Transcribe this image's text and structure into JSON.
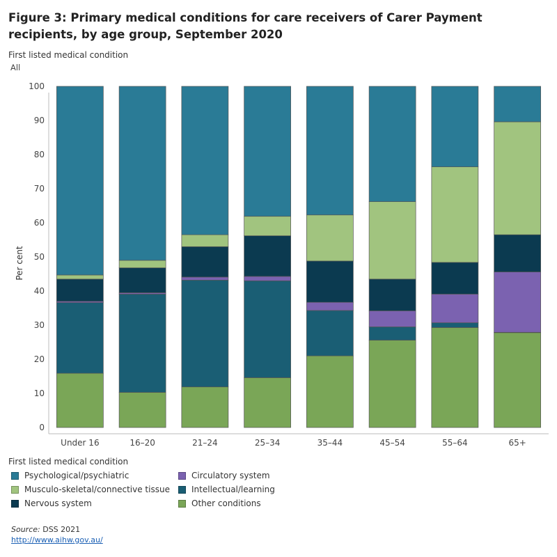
{
  "page": {
    "title": "Figure 3: Primary medical conditions for care receivers of Carer Payment recipients, by age group, September 2020",
    "filter_label": "First listed medical condition",
    "filter_value": "All",
    "legend_title": "First listed medical condition",
    "source_label": "Source:",
    "source_text": " DSS 2021",
    "link": "http://www.aihw.gov.au/"
  },
  "chart_data": {
    "type": "bar",
    "stacked": true,
    "title": "Primary medical conditions for care receivers of Carer Payment recipients, by age group, September 2020",
    "xlabel": "",
    "ylabel": "Per cent",
    "ylim": [
      0,
      100
    ],
    "yticks": [
      "0",
      "10",
      "20",
      "30",
      "40",
      "50",
      "60",
      "70",
      "80",
      "90",
      "100"
    ],
    "categories": [
      "Under 16",
      "16–20",
      "21–24",
      "25–34",
      "35–44",
      "45–54",
      "55–64",
      "65+"
    ],
    "series": [
      {
        "name": "Other conditions",
        "color": "#7aa657",
        "values": [
          15.9,
          10.3,
          11.9,
          14.6,
          21.0,
          25.6,
          29.3,
          27.8
        ]
      },
      {
        "name": "Intellectual/learning",
        "color": "#1a5e74",
        "values": [
          20.7,
          28.8,
          31.3,
          28.4,
          13.3,
          3.9,
          1.4,
          0.1
        ]
      },
      {
        "name": "Circulatory system",
        "color": "#7b62b0",
        "values": [
          0.4,
          0.4,
          0.9,
          1.3,
          2.4,
          4.7,
          8.4,
          17.7
        ]
      },
      {
        "name": "Nervous system",
        "color": "#0b3a50",
        "values": [
          6.5,
          7.3,
          8.9,
          11.9,
          12.1,
          9.3,
          9.3,
          10.9
        ]
      },
      {
        "name": "Musculo-skeletal/connective tissue",
        "color": "#a1c47f",
        "values": [
          1.2,
          2.2,
          3.5,
          5.7,
          13.5,
          22.7,
          28.0,
          33.1
        ]
      },
      {
        "name": "Psychological/psychiatric",
        "color": "#2a7b96",
        "values": [
          55.3,
          51.0,
          43.5,
          38.1,
          37.7,
          33.8,
          23.6,
          10.4
        ]
      }
    ],
    "legend": [
      {
        "name": "Psychological/psychiatric",
        "color": "#2a7b96"
      },
      {
        "name": "Musculo-skeletal/connective tissue",
        "color": "#a1c47f"
      },
      {
        "name": "Nervous system",
        "color": "#0b3a50"
      },
      {
        "name": "Circulatory system",
        "color": "#7b62b0"
      },
      {
        "name": "Intellectual/learning",
        "color": "#1a5e74"
      },
      {
        "name": "Other conditions",
        "color": "#7aa657"
      }
    ]
  }
}
